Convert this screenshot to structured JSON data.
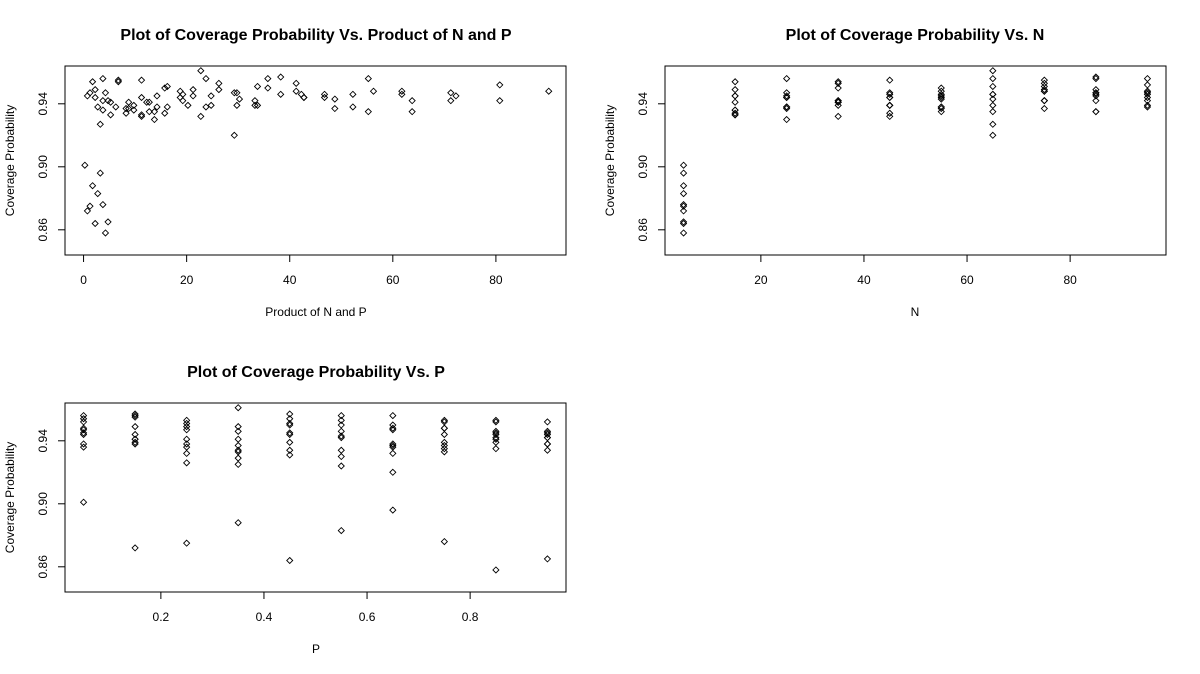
{
  "chart_data": [
    {
      "type": "scatter",
      "title": "Plot of Coverage Probability Vs. Product of N and P",
      "xlabel": "Product of N and P",
      "ylabel": "Coverage Probability",
      "xlim": [
        -3.6,
        93.6
      ],
      "ylim": [
        0.844,
        0.964
      ],
      "xticks": [
        0,
        20,
        40,
        60,
        80
      ],
      "yticks": [
        0.86,
        0.9,
        0.94
      ],
      "ytick_labels": [
        "0.86",
        "0.90",
        "0.94"
      ],
      "grid": false,
      "x": [
        0.25,
        0.75,
        1.25,
        1.75,
        2.25,
        2.75,
        3.25,
        3.75,
        4.25,
        4.75,
        0.75,
        2.25,
        3.75,
        5.25,
        6.75,
        8.25,
        9.75,
        11.25,
        12.75,
        14.25,
        1.25,
        3.75,
        6.25,
        8.75,
        11.25,
        13.75,
        16.25,
        18.75,
        21.25,
        23.75,
        1.75,
        5.25,
        8.75,
        12.25,
        15.75,
        19.25,
        22.75,
        26.25,
        29.75,
        33.25,
        2.25,
        6.75,
        11.25,
        15.75,
        20.25,
        24.75,
        29.25,
        33.75,
        38.25,
        42.75,
        2.75,
        8.25,
        13.75,
        19.25,
        24.75,
        30.25,
        35.75,
        41.25,
        46.75,
        52.25,
        3.25,
        9.75,
        16.25,
        22.75,
        29.25,
        35.75,
        42.25,
        48.75,
        55.25,
        61.75,
        3.75,
        11.25,
        18.75,
        26.25,
        33.75,
        41.25,
        48.75,
        56.25,
        63.75,
        71.25,
        4.25,
        12.75,
        21.25,
        29.75,
        38.25,
        46.75,
        55.25,
        63.75,
        72.25,
        80.75,
        4.75,
        14.25,
        23.75,
        33.25,
        42.75,
        52.25,
        61.75,
        71.25,
        80.75,
        90.25
      ],
      "y": [
        0.901,
        0.945,
        0.947,
        0.954,
        0.944,
        0.938,
        0.927,
        0.942,
        0.947,
        0.942,
        0.872,
        0.949,
        0.956,
        0.941,
        0.955,
        0.937,
        0.939,
        0.955,
        0.935,
        0.938,
        0.875,
        0.936,
        0.938,
        0.941,
        0.932,
        0.935,
        0.951,
        0.948,
        0.949,
        0.956,
        0.888,
        0.933,
        0.937,
        0.941,
        0.934,
        0.946,
        0.961,
        0.949,
        0.947,
        0.939,
        0.864,
        0.954,
        0.944,
        0.95,
        0.939,
        0.945,
        0.92,
        0.951,
        0.957,
        0.944,
        0.883,
        0.934,
        0.93,
        0.942,
        0.939,
        0.943,
        0.956,
        0.953,
        0.946,
        0.946,
        0.896,
        0.936,
        0.938,
        0.932,
        0.947,
        0.95,
        0.946,
        0.937,
        0.956,
        0.948,
        0.876,
        0.933,
        0.944,
        0.953,
        0.939,
        0.948,
        0.943,
        0.948,
        0.935,
        0.947,
        0.858,
        0.941,
        0.945,
        0.939,
        0.946,
        0.944,
        0.935,
        0.942,
        0.945,
        0.952,
        0.865,
        0.945,
        0.938,
        0.942,
        0.944,
        0.938,
        0.946,
        0.942,
        0.942,
        0.948
      ]
    },
    {
      "type": "scatter",
      "title": "Plot of Coverage Probability Vs. N",
      "xlabel": "N",
      "ylabel": "Coverage Probability",
      "xlim": [
        1.4,
        98.6
      ],
      "ylim": [
        0.844,
        0.964
      ],
      "xticks": [
        20,
        40,
        60,
        80
      ],
      "yticks": [
        0.86,
        0.9,
        0.94
      ],
      "ytick_labels": [
        "0.86",
        "0.90",
        "0.94"
      ],
      "grid": false,
      "x": [
        5,
        5,
        5,
        5,
        5,
        5,
        5,
        5,
        5,
        5,
        15,
        15,
        15,
        15,
        15,
        15,
        15,
        15,
        15,
        15,
        25,
        25,
        25,
        25,
        25,
        25,
        25,
        25,
        25,
        25,
        35,
        35,
        35,
        35,
        35,
        35,
        35,
        35,
        35,
        35,
        45,
        45,
        45,
        45,
        45,
        45,
        45,
        45,
        45,
        45,
        55,
        55,
        55,
        55,
        55,
        55,
        55,
        55,
        55,
        55,
        65,
        65,
        65,
        65,
        65,
        65,
        65,
        65,
        65,
        65,
        75,
        75,
        75,
        75,
        75,
        75,
        75,
        75,
        75,
        75,
        85,
        85,
        85,
        85,
        85,
        85,
        85,
        85,
        85,
        85,
        95,
        95,
        95,
        95,
        95,
        95,
        95,
        95,
        95,
        95
      ],
      "y": [
        0.901,
        0.872,
        0.875,
        0.888,
        0.864,
        0.883,
        0.896,
        0.876,
        0.858,
        0.865,
        0.945,
        0.949,
        0.936,
        0.933,
        0.954,
        0.934,
        0.936,
        0.933,
        0.941,
        0.945,
        0.947,
        0.956,
        0.938,
        0.937,
        0.944,
        0.93,
        0.938,
        0.944,
        0.945,
        0.938,
        0.954,
        0.941,
        0.941,
        0.941,
        0.95,
        0.942,
        0.932,
        0.953,
        0.939,
        0.942,
        0.944,
        0.955,
        0.932,
        0.934,
        0.939,
        0.939,
        0.947,
        0.939,
        0.946,
        0.944,
        0.938,
        0.937,
        0.935,
        0.946,
        0.945,
        0.943,
        0.95,
        0.948,
        0.944,
        0.938,
        0.927,
        0.939,
        0.951,
        0.961,
        0.92,
        0.956,
        0.946,
        0.943,
        0.935,
        0.946,
        0.942,
        0.955,
        0.948,
        0.949,
        0.951,
        0.953,
        0.937,
        0.948,
        0.942,
        0.942,
        0.947,
        0.935,
        0.949,
        0.947,
        0.957,
        0.946,
        0.956,
        0.935,
        0.945,
        0.942,
        0.942,
        0.938,
        0.956,
        0.939,
        0.944,
        0.946,
        0.948,
        0.947,
        0.952,
        0.948
      ]
    },
    {
      "type": "scatter",
      "title": "Plot of Coverage Probability Vs. P",
      "xlabel": "P",
      "ylabel": "Coverage Probability",
      "xlim": [
        0.014,
        0.986
      ],
      "ylim": [
        0.844,
        0.964
      ],
      "xticks": [
        0.2,
        0.4,
        0.6,
        0.8
      ],
      "yticks": [
        0.86,
        0.9,
        0.94
      ],
      "ytick_labels": [
        "0.86",
        "0.90",
        "0.94"
      ],
      "grid": false,
      "x": [
        0.05,
        0.05,
        0.05,
        0.05,
        0.05,
        0.05,
        0.05,
        0.05,
        0.05,
        0.05,
        0.15,
        0.15,
        0.15,
        0.15,
        0.15,
        0.15,
        0.15,
        0.15,
        0.15,
        0.15,
        0.25,
        0.25,
        0.25,
        0.25,
        0.25,
        0.25,
        0.25,
        0.25,
        0.25,
        0.25,
        0.35,
        0.35,
        0.35,
        0.35,
        0.35,
        0.35,
        0.35,
        0.35,
        0.35,
        0.35,
        0.45,
        0.45,
        0.45,
        0.45,
        0.45,
        0.45,
        0.45,
        0.45,
        0.45,
        0.45,
        0.55,
        0.55,
        0.55,
        0.55,
        0.55,
        0.55,
        0.55,
        0.55,
        0.55,
        0.55,
        0.65,
        0.65,
        0.65,
        0.65,
        0.65,
        0.65,
        0.65,
        0.65,
        0.65,
        0.65,
        0.75,
        0.75,
        0.75,
        0.75,
        0.75,
        0.75,
        0.75,
        0.75,
        0.75,
        0.75,
        0.85,
        0.85,
        0.85,
        0.85,
        0.85,
        0.85,
        0.85,
        0.85,
        0.85,
        0.85,
        0.95,
        0.95,
        0.95,
        0.95,
        0.95,
        0.95,
        0.95,
        0.95,
        0.95,
        0.95
      ],
      "y": [
        0.901,
        0.945,
        0.947,
        0.954,
        0.944,
        0.938,
        0.956,
        0.936,
        0.952,
        0.948,
        0.872,
        0.949,
        0.956,
        0.941,
        0.955,
        0.939,
        0.957,
        0.938,
        0.941,
        0.944,
        0.875,
        0.936,
        0.938,
        0.941,
        0.932,
        0.951,
        0.926,
        0.953,
        0.947,
        0.949,
        0.888,
        0.933,
        0.937,
        0.941,
        0.934,
        0.946,
        0.961,
        0.949,
        0.925,
        0.929,
        0.864,
        0.954,
        0.944,
        0.95,
        0.939,
        0.945,
        0.931,
        0.951,
        0.957,
        0.934,
        0.883,
        0.934,
        0.93,
        0.942,
        0.95,
        0.943,
        0.956,
        0.953,
        0.924,
        0.946,
        0.896,
        0.936,
        0.938,
        0.932,
        0.947,
        0.95,
        0.92,
        0.937,
        0.956,
        0.948,
        0.876,
        0.933,
        0.944,
        0.953,
        0.939,
        0.948,
        0.935,
        0.948,
        0.937,
        0.952,
        0.858,
        0.941,
        0.945,
        0.939,
        0.946,
        0.944,
        0.935,
        0.942,
        0.953,
        0.952,
        0.865,
        0.945,
        0.938,
        0.942,
        0.944,
        0.938,
        0.946,
        0.934,
        0.942,
        0.952
      ]
    }
  ]
}
